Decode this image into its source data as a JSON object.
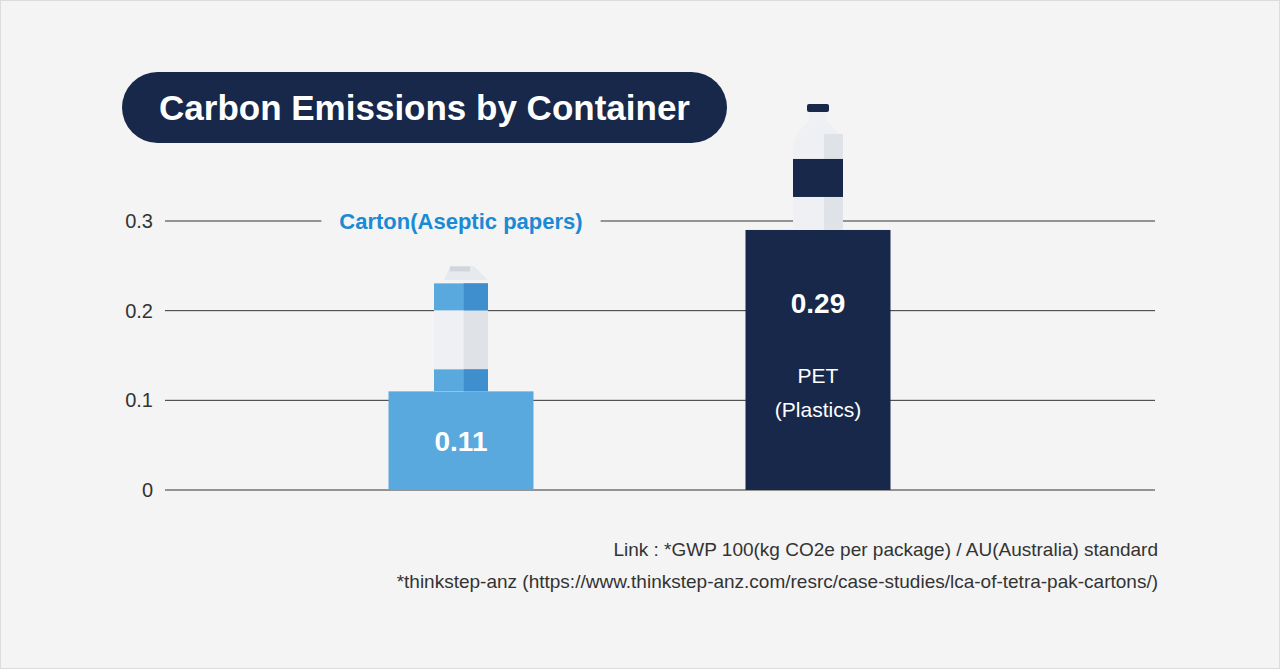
{
  "chart_data": {
    "type": "bar",
    "title": "Carbon Emissions by Container",
    "categories": [
      "Carton(Aseptic papers)",
      "PET (Plastics)"
    ],
    "values": [
      0.11,
      0.29
    ],
    "colors": [
      "#5aa9de",
      "#17284a"
    ],
    "ylim": [
      0,
      0.3
    ],
    "yticks": [
      0,
      0.1,
      0.2,
      0.3
    ],
    "grid": true,
    "data_labels": true,
    "annotations": [
      "Link : *GWP 100(kg CO2e per package) / AU(Australia) standard",
      "*thinkstep-anz (https://www.thinkstep-anz.com/resrc/case-studies/lca-of-tetra-pak-cartons/)"
    ]
  }
}
